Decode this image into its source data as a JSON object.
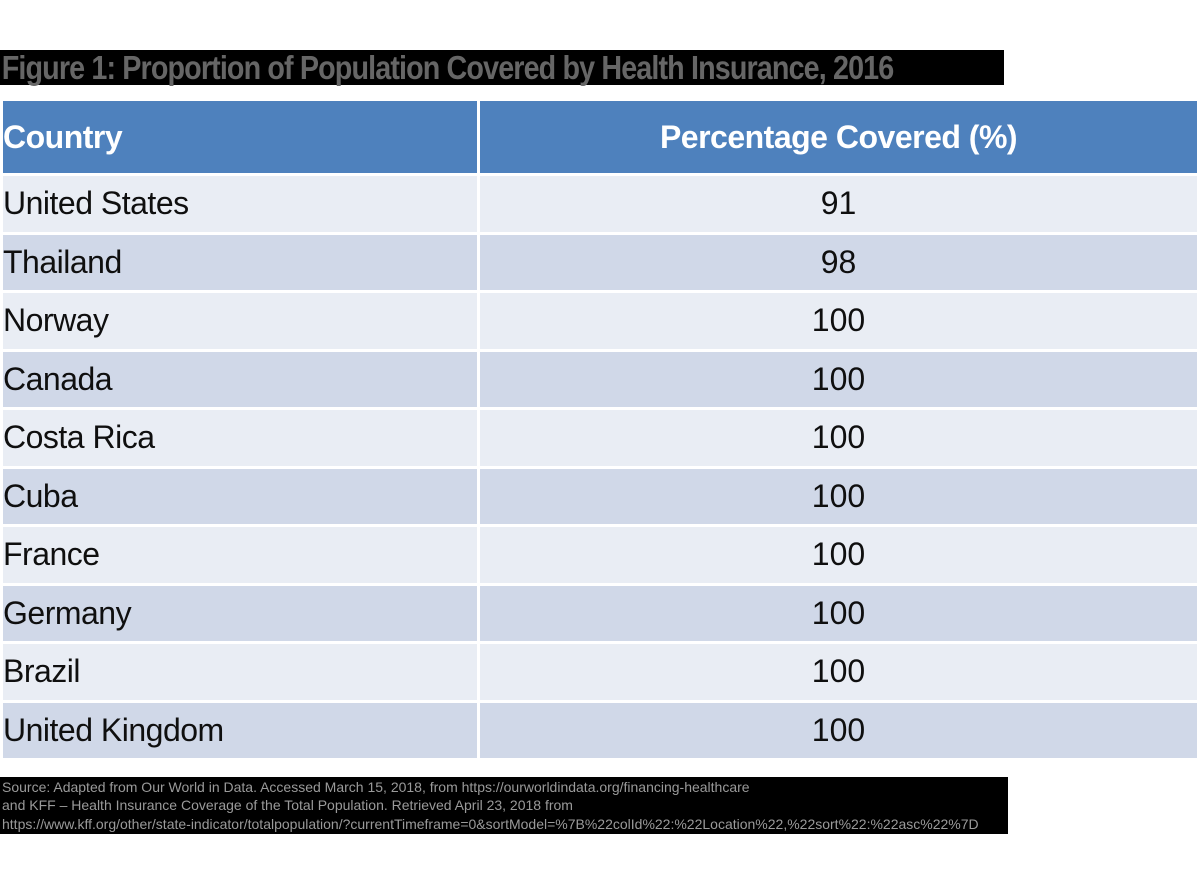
{
  "figure": {
    "title": "Figure 1: Proportion of Population Covered by Health Insurance, 2016"
  },
  "table": {
    "columns": [
      "Country",
      "Percentage Covered (%)"
    ],
    "rows": [
      {
        "country": "United States",
        "value": "91"
      },
      {
        "country": "Thailand",
        "value": "98"
      },
      {
        "country": "Norway",
        "value": "100"
      },
      {
        "country": "Canada",
        "value": "100"
      },
      {
        "country": "Costa Rica",
        "value": "100"
      },
      {
        "country": "Cuba",
        "value": "100"
      },
      {
        "country": "France",
        "value": "100"
      },
      {
        "country": "Germany",
        "value": "100"
      },
      {
        "country": "Brazil",
        "value": "100"
      },
      {
        "country": "United Kingdom",
        "value": "100"
      }
    ]
  },
  "source": {
    "lines": [
      "Source: Adapted from Our World in Data. Accessed March 15, 2018, from https://ourworldindata.org/financing-healthcare",
      "and KFF – Health Insurance Coverage of the Total Population. Retrieved April 23, 2018 from",
      "https://www.kff.org/other/state-indicator/totalpopulation/?currentTimeframe=0&sortModel=%7B%22colId%22:%22Location%22,%22sort%22:%22asc%22%7D"
    ]
  },
  "colors": {
    "header_bg": "#4E81BD",
    "header_text": "#FFFFFF",
    "row_light": "#E9EDF4",
    "row_dark": "#D0D8E8",
    "row_text": "#0F0F0F",
    "title_text": "#666666",
    "title_highlight_bg": "#000000",
    "source_bg": "#000000",
    "source_text": "#9A9A9A"
  },
  "chart_data": {
    "type": "table",
    "title": "Figure 1: Proportion of Population Covered by Health Insurance, 2016",
    "columns": [
      "Country",
      "Percentage Covered (%)"
    ],
    "categories": [
      "United States",
      "Thailand",
      "Norway",
      "Canada",
      "Costa Rica",
      "Cuba",
      "France",
      "Germany",
      "Brazil",
      "United Kingdom"
    ],
    "values": [
      91,
      98,
      100,
      100,
      100,
      100,
      100,
      100,
      100,
      100
    ]
  }
}
